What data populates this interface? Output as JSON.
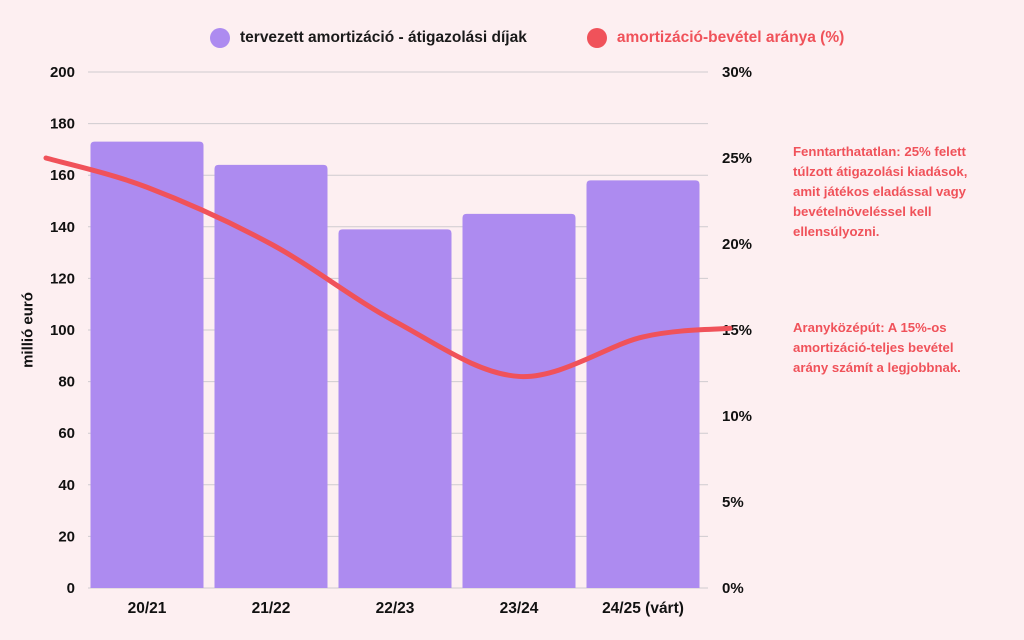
{
  "legend": {
    "bars_label": "tervezett amortizáció - átigazolási díjak",
    "line_label": "amortizáció-bevétel aránya (%)"
  },
  "annotations": {
    "note_unsustainable": "Fenntarthatatlan: 25% felett túlzott átigazolási kiadások, amit játékos eladással vagy bevételnöveléssel kell ellensúlyozni.",
    "note_golden_mean": "Aranyközépút: A 15%-os amortizáció-teljes bevétel arány számít a legjobbnak."
  },
  "colors": {
    "bar": "#AD8BF0",
    "line": "#F0525A",
    "background": "#FDEFF1",
    "grid": "#CFCBD0"
  },
  "chart_data": {
    "type": "bar",
    "categories": [
      "20/21",
      "21/22",
      "22/23",
      "23/24",
      "24/25 (várt)"
    ],
    "series": [
      {
        "name": "tervezett amortizáció - átigazolási díjak",
        "type": "bar",
        "axis": "left",
        "values": [
          173,
          164,
          139,
          145,
          158
        ]
      },
      {
        "name": "amortizáció-bevétel aránya (%)",
        "type": "line",
        "axis": "right",
        "x": [
          "20/21",
          "21/22",
          "22/23",
          "23/24",
          "24/25 (várt)"
        ],
        "values": [
          23.3,
          20.0,
          15.5,
          12.3,
          14.6
        ],
        "start_value": 25.0,
        "end_value": 15.1
      }
    ],
    "ylabel": "millió euró",
    "ylim": [
      0,
      200
    ],
    "yticks": [
      "0",
      "20",
      "40",
      "60",
      "80",
      "100",
      "120",
      "140",
      "160",
      "180",
      "200"
    ],
    "y2lim": [
      0,
      30
    ],
    "y2ticks": [
      "0%",
      "5%",
      "10%",
      "15%",
      "20%",
      "25%",
      "30%"
    ],
    "grid": true,
    "legend_position": "top-center"
  }
}
